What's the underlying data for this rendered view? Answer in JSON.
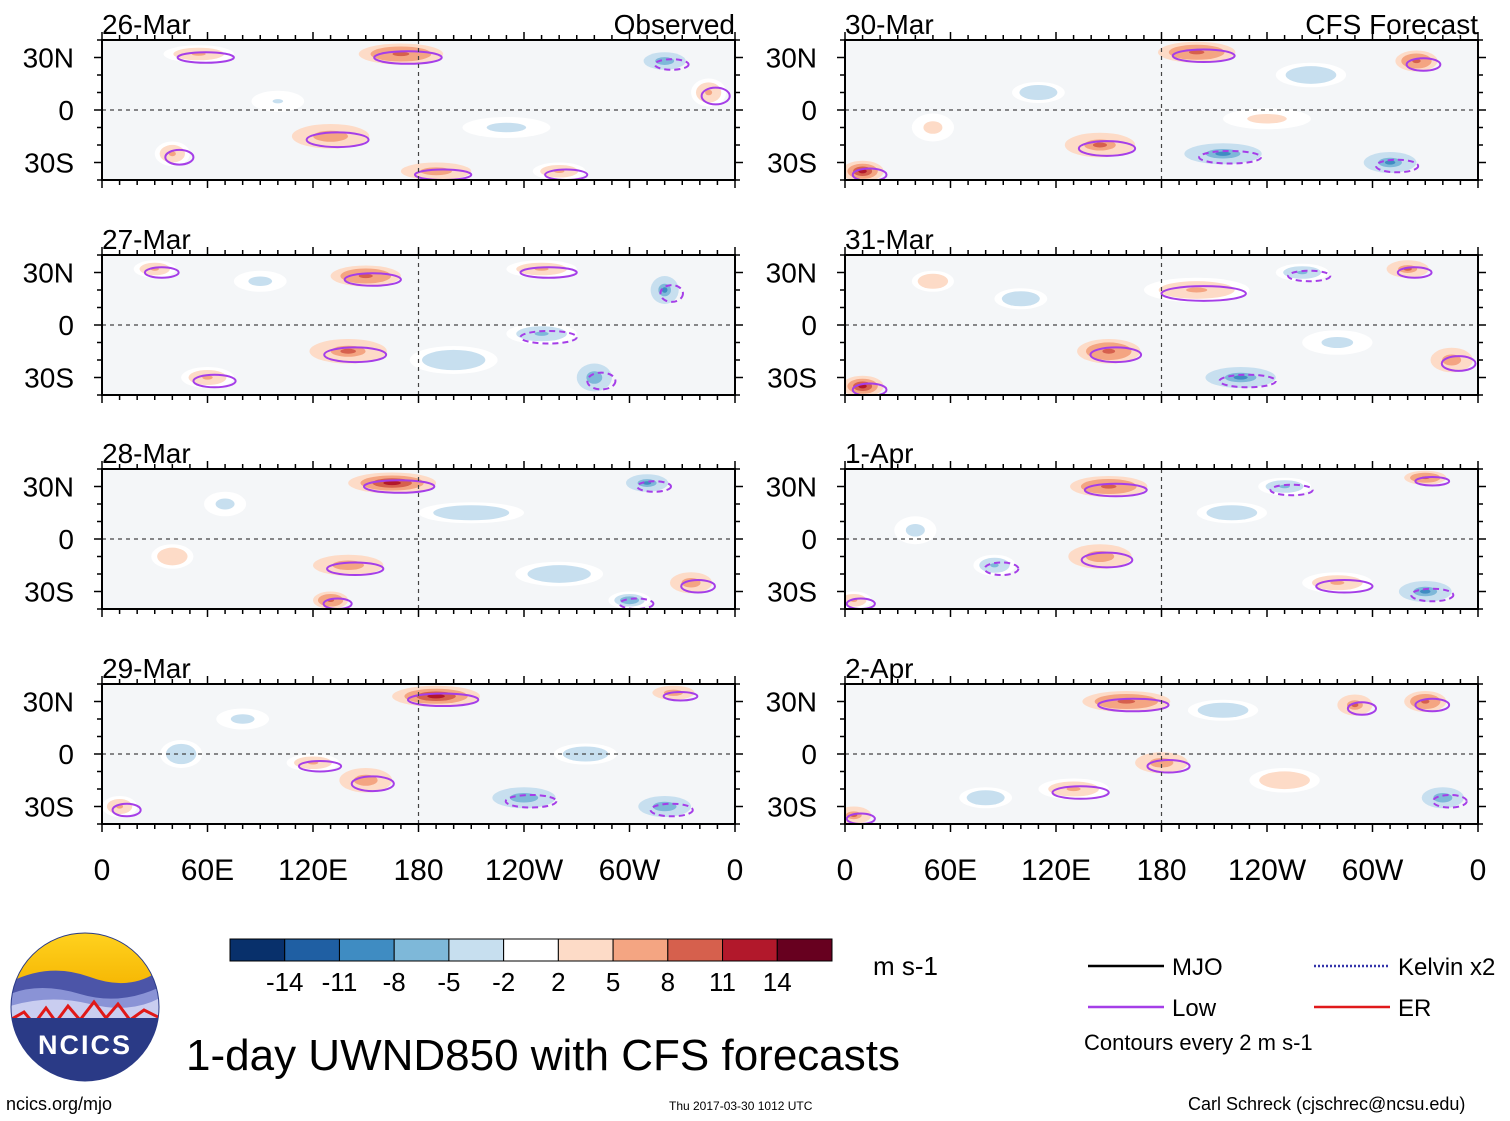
{
  "title": "1-day UWND850 with CFS forecasts",
  "footer": {
    "left": "ncics.org/mjo",
    "center": "Thu 2017-03-30 1012 UTC",
    "right": "Carl Schreck (cjschrec@ncsu.edu)"
  },
  "logo": {
    "text": "NCICS"
  },
  "colorbar": {
    "units": "m s-1",
    "levels": [
      "-14",
      "-11",
      "-8",
      "-5",
      "-2",
      "2",
      "5",
      "8",
      "11",
      "14"
    ],
    "colors": [
      "#08306b",
      "#1f5fa3",
      "#3f8cc2",
      "#7eb8d9",
      "#c7dfef",
      "#ffffff",
      "#fddbc7",
      "#f4a582",
      "#d6604d",
      "#b2182b",
      "#67001f"
    ]
  },
  "legend": {
    "items": [
      {
        "label": "MJO",
        "color": "#000000",
        "style": "solid"
      },
      {
        "label": "Kelvin x2",
        "color": "#3333aa",
        "style": "dotted"
      },
      {
        "label": "Low",
        "color": "#a53ee8",
        "style": "solid"
      },
      {
        "label": "ER",
        "color": "#e0191b",
        "style": "solid"
      }
    ],
    "note": "Contours every 2 m s-1"
  },
  "chart_data": {
    "type": "heatmap",
    "variable": "850-hPa zonal wind anomaly (m s-1)",
    "x_ticks": [
      "0",
      "60E",
      "120E",
      "180",
      "120W",
      "60W",
      "0"
    ],
    "x_tick_values": [
      0,
      60,
      120,
      180,
      240,
      300,
      360
    ],
    "y_ticks": [
      "30N",
      "0",
      "30S"
    ],
    "y_tick_values": [
      30,
      0,
      -30
    ],
    "xlim": [
      0,
      360
    ],
    "ylim": [
      -40,
      40
    ],
    "columns": [
      {
        "header": "Observed",
        "panels": [
          "26-Mar",
          "27-Mar",
          "28-Mar",
          "29-Mar"
        ]
      },
      {
        "header": "CFS Forecast",
        "panels": [
          "30-Mar",
          "31-Mar",
          "1-Apr",
          "2-Apr"
        ]
      }
    ],
    "anomaly_blobs": [
      [
        [
          [
            170,
            32,
            24,
            6,
            12
          ],
          [
            55,
            32,
            20,
            5,
            7
          ],
          [
            320,
            28,
            12,
            5,
            -9
          ],
          [
            130,
            -15,
            22,
            7,
            8
          ],
          [
            190,
            -35,
            20,
            5,
            9
          ],
          [
            260,
            -35,
            15,
            5,
            7
          ],
          [
            40,
            -25,
            10,
            7,
            7
          ],
          [
            230,
            -10,
            25,
            6,
            -4
          ],
          [
            345,
            10,
            10,
            8,
            6
          ],
          [
            100,
            5,
            15,
            6,
            -3
          ]
        ],
        [
          [
            150,
            28,
            20,
            6,
            12
          ],
          [
            320,
            20,
            8,
            8,
            -10
          ],
          [
            250,
            32,
            20,
            5,
            6
          ],
          [
            140,
            -15,
            22,
            7,
            10
          ],
          [
            60,
            -30,
            15,
            6,
            6
          ],
          [
            280,
            -30,
            10,
            8,
            -9
          ],
          [
            200,
            -20,
            25,
            8,
            -5
          ],
          [
            250,
            -5,
            20,
            6,
            -6
          ],
          [
            30,
            32,
            12,
            5,
            6
          ],
          [
            90,
            25,
            15,
            6,
            -4
          ]
        ],
        [
          [
            165,
            32,
            25,
            6,
            14
          ],
          [
            310,
            32,
            12,
            5,
            -10
          ],
          [
            140,
            -15,
            20,
            6,
            9
          ],
          [
            130,
            -35,
            10,
            5,
            12
          ],
          [
            335,
            -25,
            12,
            6,
            9
          ],
          [
            300,
            -35,
            12,
            5,
            -8
          ],
          [
            210,
            15,
            30,
            6,
            -5
          ],
          [
            260,
            -20,
            25,
            7,
            -5
          ],
          [
            70,
            20,
            12,
            7,
            -4
          ],
          [
            40,
            -10,
            12,
            7,
            5
          ]
        ],
        [
          [
            190,
            33,
            25,
            6,
            14
          ],
          [
            325,
            35,
            12,
            4,
            8
          ],
          [
            240,
            -25,
            18,
            6,
            -9
          ],
          [
            320,
            -30,
            15,
            6,
            -9
          ],
          [
            150,
            -15,
            15,
            7,
            9
          ],
          [
            120,
            -5,
            15,
            5,
            6
          ],
          [
            45,
            0,
            12,
            8,
            -5
          ],
          [
            275,
            0,
            18,
            6,
            -5
          ],
          [
            10,
            -30,
            10,
            6,
            7
          ],
          [
            80,
            20,
            15,
            6,
            -4
          ]
        ]
      ],
      [
        [
          [
            200,
            33,
            22,
            6,
            12
          ],
          [
            325,
            28,
            12,
            6,
            12
          ],
          [
            10,
            -35,
            12,
            6,
            14
          ],
          [
            145,
            -20,
            20,
            7,
            10
          ],
          [
            215,
            -25,
            22,
            6,
            -10
          ],
          [
            310,
            -30,
            15,
            6,
            -10
          ],
          [
            265,
            20,
            20,
            7,
            -5
          ],
          [
            110,
            10,
            15,
            6,
            -5
          ],
          [
            50,
            -10,
            12,
            8,
            4
          ],
          [
            240,
            -5,
            25,
            6,
            4
          ]
        ],
        [
          [
            200,
            20,
            30,
            7,
            6
          ],
          [
            320,
            32,
            12,
            5,
            10
          ],
          [
            10,
            -35,
            12,
            6,
            14
          ],
          [
            150,
            -15,
            18,
            7,
            12
          ],
          [
            225,
            -30,
            20,
            6,
            -10
          ],
          [
            345,
            -20,
            12,
            7,
            8
          ],
          [
            100,
            15,
            15,
            6,
            -5
          ],
          [
            280,
            -10,
            20,
            7,
            -4
          ],
          [
            50,
            25,
            12,
            6,
            5
          ],
          [
            260,
            30,
            15,
            5,
            -6
          ]
        ],
        [
          [
            150,
            30,
            22,
            6,
            12
          ],
          [
            330,
            35,
            12,
            4,
            12
          ],
          [
            145,
            -10,
            18,
            7,
            8
          ],
          [
            330,
            -30,
            15,
            6,
            -10
          ],
          [
            85,
            -15,
            12,
            6,
            -6
          ],
          [
            220,
            15,
            20,
            6,
            -5
          ],
          [
            280,
            -25,
            20,
            6,
            6
          ],
          [
            40,
            5,
            12,
            8,
            -4
          ],
          [
            250,
            30,
            15,
            5,
            -6
          ],
          [
            5,
            -35,
            10,
            5,
            7
          ]
        ],
        [
          [
            160,
            30,
            25,
            6,
            12
          ],
          [
            330,
            30,
            12,
            6,
            12
          ],
          [
            290,
            28,
            10,
            6,
            10
          ],
          [
            180,
            -5,
            15,
            6,
            8
          ],
          [
            340,
            -25,
            12,
            6,
            -9
          ],
          [
            130,
            -20,
            20,
            6,
            6
          ],
          [
            215,
            25,
            20,
            6,
            -5
          ],
          [
            80,
            -25,
            15,
            6,
            -5
          ],
          [
            250,
            -15,
            20,
            7,
            5
          ],
          [
            5,
            -35,
            10,
            5,
            10
          ]
        ]
      ]
    ]
  }
}
